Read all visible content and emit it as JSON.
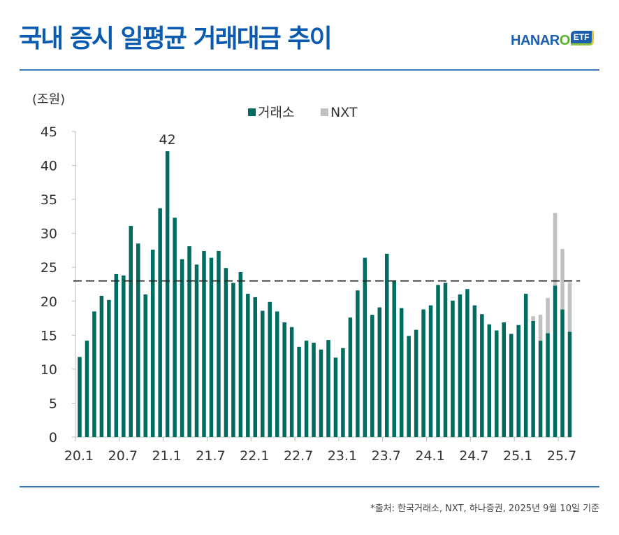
{
  "title": "국내 증시 일평균 거래대금 추이",
  "logo": {
    "brand": "HANAR",
    "brand_o": "O",
    "badge": "ETF"
  },
  "source": "*출처: 한국거래소, NXT, 하나증권, 2025년 9월 10일 기준",
  "colors": {
    "title": "#0a5bb0",
    "krx": "#006b5f",
    "nxt": "#c0c0c0",
    "rule": "#3b78bd"
  },
  "chart_data": {
    "type": "bar",
    "stacked": true,
    "title": "국내 증시 일평균 거래대금 추이",
    "unit_label": "(조원)",
    "xlabel": "",
    "ylabel": "(조원)",
    "ylim": [
      0,
      45
    ],
    "yticks": [
      0,
      5,
      10,
      15,
      20,
      25,
      30,
      35,
      40,
      45
    ],
    "xtick_labels": [
      "20.1",
      "20.7",
      "21.1",
      "21.7",
      "22.1",
      "22.7",
      "23.1",
      "23.7",
      "24.1",
      "24.7",
      "25.1",
      "25.7"
    ],
    "legend": {
      "position": "top-center",
      "entries": [
        "거래소",
        "NXT"
      ]
    },
    "reference_line": {
      "value": 23,
      "style": "dashed"
    },
    "annotation": {
      "label": "42",
      "category": "21.1"
    },
    "categories": [
      "20.1",
      "20.2",
      "20.3",
      "20.4",
      "20.5",
      "20.6",
      "20.7",
      "20.8",
      "20.9",
      "20.10",
      "20.11",
      "20.12",
      "21.1",
      "21.2",
      "21.3",
      "21.4",
      "21.5",
      "21.6",
      "21.7",
      "21.8",
      "21.9",
      "21.10",
      "21.11",
      "21.12",
      "22.1",
      "22.2",
      "22.3",
      "22.4",
      "22.5",
      "22.6",
      "22.7",
      "22.8",
      "22.9",
      "22.10",
      "22.11",
      "22.12",
      "23.1",
      "23.2",
      "23.3",
      "23.4",
      "23.5",
      "23.6",
      "23.7",
      "23.8",
      "23.9",
      "23.10",
      "23.11",
      "23.12",
      "24.1",
      "24.2",
      "24.3",
      "24.4",
      "24.5",
      "24.6",
      "24.7",
      "24.8",
      "24.9",
      "24.10",
      "24.11",
      "24.12",
      "25.1",
      "25.2",
      "25.3",
      "25.4",
      "25.5",
      "25.6",
      "25.7",
      "25.8"
    ],
    "series": [
      {
        "name": "거래소",
        "values": [
          11.8,
          14.2,
          18.5,
          20.8,
          20.2,
          24.0,
          23.8,
          31.1,
          28.5,
          21.0,
          27.6,
          33.7,
          42.1,
          32.3,
          26.2,
          28.1,
          25.4,
          27.4,
          26.4,
          27.4,
          24.9,
          22.7,
          24.3,
          21.1,
          20.6,
          18.6,
          19.9,
          18.5,
          16.9,
          16.2,
          13.3,
          14.2,
          13.9,
          12.9,
          14.3,
          11.7,
          13.1,
          17.6,
          21.6,
          26.4,
          18.0,
          19.1,
          27.0,
          23.0,
          19.0,
          14.9,
          15.8,
          18.8,
          19.4,
          22.4,
          22.7,
          20.1,
          21.0,
          21.8,
          19.4,
          18.1,
          16.6,
          15.7,
          16.9,
          15.2,
          16.5,
          21.1,
          17.1,
          14.2,
          15.3,
          22.3,
          18.8,
          15.5
        ]
      },
      {
        "name": "NXT",
        "values": [
          0,
          0,
          0,
          0,
          0,
          0,
          0,
          0,
          0,
          0,
          0,
          0,
          0,
          0,
          0,
          0,
          0,
          0,
          0,
          0,
          0,
          0,
          0,
          0,
          0,
          0,
          0,
          0,
          0,
          0,
          0,
          0,
          0,
          0,
          0,
          0,
          0,
          0,
          0,
          0,
          0,
          0,
          0,
          0,
          0,
          0,
          0,
          0,
          0,
          0,
          0,
          0,
          0,
          0,
          0,
          0,
          0,
          0,
          0,
          0,
          0,
          0,
          0.7,
          3.8,
          5.2,
          10.7,
          8.9,
          7.3
        ]
      }
    ]
  }
}
